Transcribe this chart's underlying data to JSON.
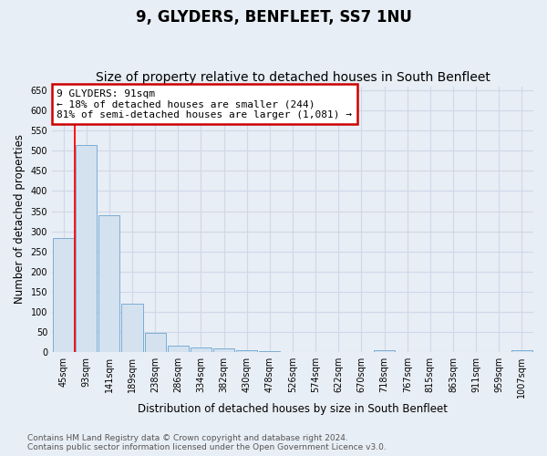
{
  "title": "9, GLYDERS, BENFLEET, SS7 1NU",
  "subtitle": "Size of property relative to detached houses in South Benfleet",
  "xlabel": "Distribution of detached houses by size in South Benfleet",
  "ylabel": "Number of detached properties",
  "categories": [
    "45sqm",
    "93sqm",
    "141sqm",
    "189sqm",
    "238sqm",
    "286sqm",
    "334sqm",
    "382sqm",
    "430sqm",
    "478sqm",
    "526sqm",
    "574sqm",
    "622sqm",
    "670sqm",
    "718sqm",
    "767sqm",
    "815sqm",
    "863sqm",
    "911sqm",
    "959sqm",
    "1007sqm"
  ],
  "values": [
    283,
    515,
    340,
    120,
    48,
    17,
    12,
    9,
    5,
    3,
    0,
    0,
    0,
    0,
    5,
    0,
    0,
    0,
    0,
    0,
    5
  ],
  "bar_color": "#d4e2f0",
  "bar_edge_color": "#7aadd4",
  "red_line_x": 0.5,
  "annotation_text": "9 GLYDERS: 91sqm\n← 18% of detached houses are smaller (244)\n81% of semi-detached houses are larger (1,081) →",
  "annotation_box_facecolor": "#ffffff",
  "annotation_box_edgecolor": "#cc0000",
  "ylim": [
    0,
    660
  ],
  "yticks": [
    0,
    50,
    100,
    150,
    200,
    250,
    300,
    350,
    400,
    450,
    500,
    550,
    600,
    650
  ],
  "footer_line1": "Contains HM Land Registry data © Crown copyright and database right 2024.",
  "footer_line2": "Contains public sector information licensed under the Open Government Licence v3.0.",
  "background_color": "#e8eef5",
  "grid_color": "#d0d8e8",
  "title_fontsize": 12,
  "subtitle_fontsize": 10,
  "tick_fontsize": 7,
  "label_fontsize": 8.5,
  "annotation_fontsize": 8,
  "footer_fontsize": 6.5
}
